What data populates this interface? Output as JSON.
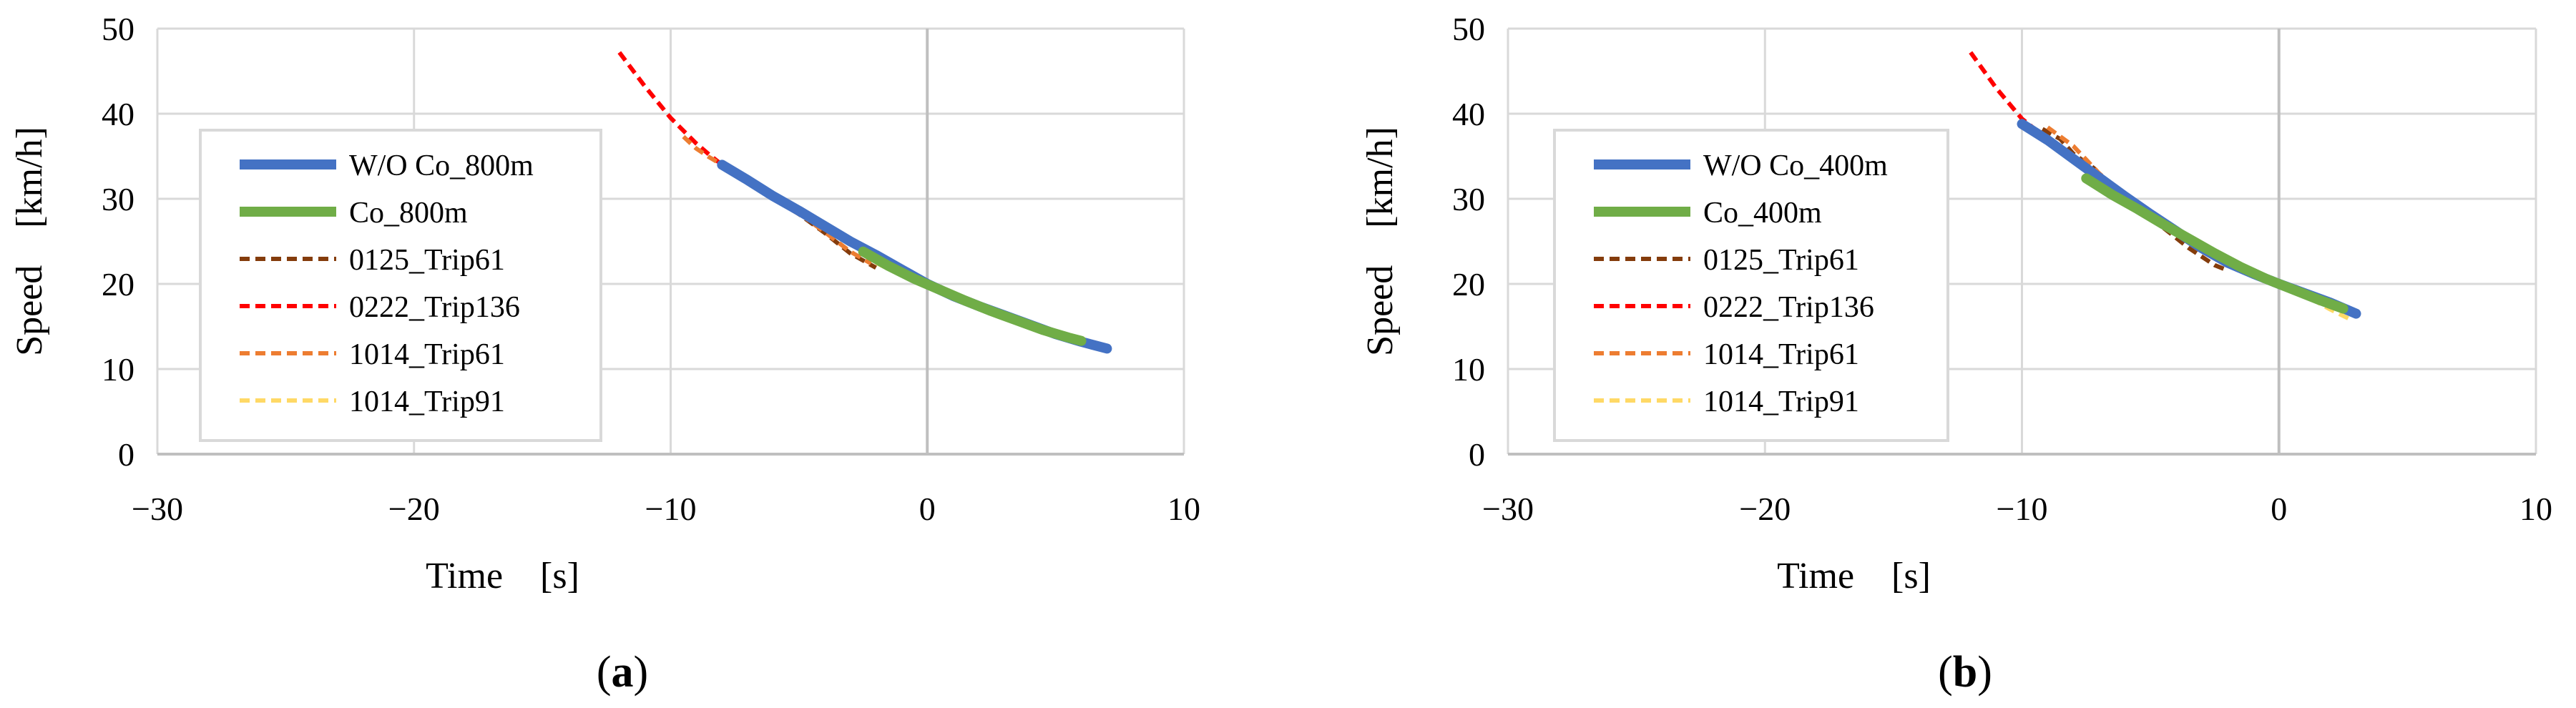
{
  "colors": {
    "wo_co": "#4472C4",
    "co": "#70AD47",
    "trip_0125_61": "#843C0C",
    "trip_0222_136": "#FF0000",
    "trip_1014_61": "#ED7D31",
    "trip_1014_91": "#FFD966"
  },
  "chart_data": [
    {
      "type": "line",
      "panel_label": "a",
      "xlabel": "Time [s]",
      "ylabel": "Speed [km/h]",
      "xlim": [
        -30,
        10
      ],
      "ylim": [
        0,
        50
      ],
      "xticks": [
        -30,
        -20,
        -10,
        0,
        10
      ],
      "xtick_labels": [
        "−30",
        "−20",
        "−10",
        "0",
        "10"
      ],
      "yticks": [
        0,
        10,
        20,
        30,
        40,
        50
      ],
      "ytick_labels": [
        "0",
        "10",
        "20",
        "30",
        "40",
        "50"
      ],
      "grid": true,
      "legend": "upper-left",
      "series": [
        {
          "name": "W/O Co_800m",
          "color_key": "wo_co",
          "style": "solid",
          "x": [
            -8,
            -7,
            -6,
            -5,
            -4,
            -3,
            -2,
            -1,
            0,
            1,
            2,
            3,
            4,
            5,
            6,
            7
          ],
          "y": [
            34.0,
            32.2,
            30.3,
            28.6,
            26.8,
            25.0,
            23.4,
            21.7,
            20.0,
            18.6,
            17.4,
            16.3,
            15.2,
            14.1,
            13.2,
            12.4
          ]
        },
        {
          "name": "Co_800m",
          "color_key": "co",
          "style": "solid",
          "x": [
            -2.5,
            -1.5,
            -0.5,
            0.5,
            1.5,
            2.5,
            3.5,
            4.5,
            5.5,
            6
          ],
          "y": [
            23.8,
            22.1,
            20.6,
            19.3,
            18.0,
            16.8,
            15.7,
            14.6,
            13.7,
            13.3
          ]
        },
        {
          "name": "0125_Trip61",
          "color_key": "trip_0125_61",
          "style": "dashed",
          "x": [
            -7.8,
            -7.3,
            -6.8,
            -6.0,
            -5.0,
            -4.0,
            -3.0,
            -2.0
          ],
          "y": [
            33.8,
            33.0,
            31.8,
            30.0,
            28.2,
            26.0,
            23.6,
            21.9
          ]
        },
        {
          "name": "0222_Trip136",
          "color_key": "trip_0222_136",
          "style": "dashed",
          "x": [
            -12,
            -11,
            -10,
            -9,
            -8.5,
            -8,
            -7.5,
            -7
          ],
          "y": [
            47.2,
            43.2,
            39.5,
            36.5,
            35.2,
            34.0,
            33.2,
            32.3
          ]
        },
        {
          "name": "1014_Trip61",
          "color_key": "trip_1014_61",
          "style": "dashed",
          "x": [
            -9.5,
            -9,
            -8.5,
            -8,
            -7.5,
            -6,
            -5,
            -4,
            -3,
            -2.2
          ],
          "y": [
            37.3,
            35.9,
            34.9,
            34.0,
            33.0,
            30.2,
            28.3,
            26.1,
            23.8,
            22.4
          ]
        },
        {
          "name": "1014_Trip91",
          "color_key": "trip_1014_91",
          "style": "dashed",
          "x": [
            -2,
            -1,
            0,
            1,
            2,
            3,
            4,
            5,
            5.8
          ],
          "y": [
            22.5,
            21.0,
            19.9,
            18.6,
            17.3,
            16.2,
            15.1,
            14.0,
            13.4
          ]
        }
      ]
    },
    {
      "type": "line",
      "panel_label": "b",
      "xlabel": "Time [s]",
      "ylabel": "Speed [km/h]",
      "xlim": [
        -30,
        10
      ],
      "ylim": [
        0,
        50
      ],
      "xticks": [
        -30,
        -20,
        -10,
        0,
        10
      ],
      "xtick_labels": [
        "−30",
        "−20",
        "−10",
        "0",
        "10"
      ],
      "yticks": [
        0,
        10,
        20,
        30,
        40,
        50
      ],
      "ytick_labels": [
        "0",
        "10",
        "20",
        "30",
        "40",
        "50"
      ],
      "grid": true,
      "legend": "upper-left",
      "series": [
        {
          "name": "W/O Co_400m",
          "color_key": "wo_co",
          "style": "solid",
          "x": [
            -10,
            -9,
            -8,
            -7,
            -6,
            -5,
            -4,
            -3,
            -2,
            -1,
            0,
            1,
            2,
            3
          ],
          "y": [
            38.8,
            36.9,
            34.7,
            32.5,
            30.3,
            28.2,
            26.2,
            24.2,
            22.5,
            21.2,
            20.0,
            18.9,
            17.8,
            16.5
          ]
        },
        {
          "name": "Co_400m",
          "color_key": "co",
          "style": "solid",
          "x": [
            -7.5,
            -6.5,
            -5.5,
            -4.5,
            -3.5,
            -2.5,
            -1.5,
            -0.5,
            0.5,
            1.5,
            2.5
          ],
          "y": [
            32.4,
            30.5,
            28.8,
            27.0,
            25.3,
            23.6,
            22.0,
            20.6,
            19.4,
            18.2,
            17.1
          ]
        },
        {
          "name": "0125_Trip61",
          "color_key": "trip_0125_61",
          "style": "dashed",
          "x": [
            -9.2,
            -8.5,
            -8,
            -7.2,
            -6.5,
            -5.5,
            -4.5,
            -3.5,
            -2.5,
            -2
          ],
          "y": [
            38.2,
            37.0,
            35.3,
            33.6,
            31.2,
            28.8,
            26.6,
            24.2,
            22.2,
            21.6
          ]
        },
        {
          "name": "0222_Trip136",
          "color_key": "trip_0222_136",
          "style": "dashed",
          "x": [
            -12,
            -11,
            -10,
            -9,
            -8.5,
            -8,
            -7.5,
            -7
          ],
          "y": [
            47.2,
            43.0,
            39.4,
            37.0,
            35.8,
            34.8,
            33.7,
            32.6
          ]
        },
        {
          "name": "1014_Trip61",
          "color_key": "trip_1014_61",
          "style": "dashed",
          "x": [
            -9,
            -8,
            -7,
            -6,
            -5,
            -4,
            -3,
            -2
          ],
          "y": [
            38.4,
            36.2,
            33.0,
            30.4,
            28.5,
            26.4,
            24.0,
            22.6
          ]
        },
        {
          "name": "1014_Trip91",
          "color_key": "trip_1014_91",
          "style": "dashed",
          "x": [
            -1,
            0,
            1,
            2,
            2.8
          ],
          "y": [
            21.0,
            19.9,
            18.7,
            17.0,
            15.8
          ]
        }
      ]
    }
  ]
}
